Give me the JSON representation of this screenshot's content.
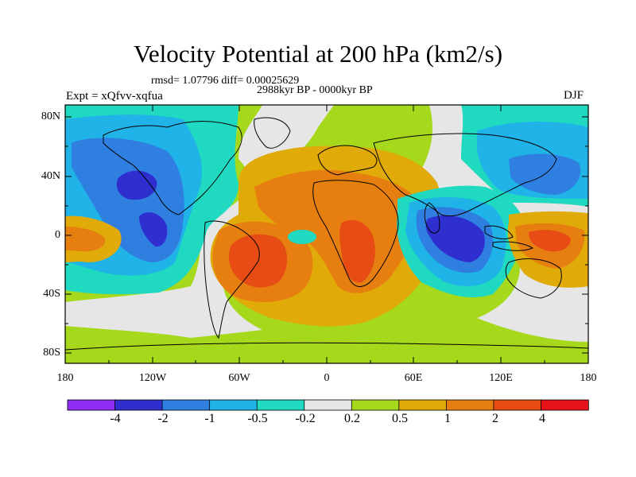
{
  "title": "Velocity Potential at 200 hPa (km2/s)",
  "subtitle_stats": "rmsd= 1.07796 diff= 0.00025629",
  "subtitle_period": "2988kyr BP - 0000kyr BP",
  "experiment": "Expt = xQfvv-xqfua",
  "season": "DJF",
  "lat_labels": [
    "80N",
    "40N",
    "0",
    "40S",
    "80S"
  ],
  "lon_labels": [
    "180",
    "120W",
    "60W",
    "0",
    "60E",
    "120E",
    "180"
  ],
  "colorbar": {
    "labels": [
      "-4",
      "-2",
      "-1",
      "-0.5",
      "-0.2",
      "0.2",
      "0.5",
      "1",
      "2",
      "4"
    ],
    "colors": [
      "#8f2df2",
      "#2f2fd0",
      "#2f7fe0",
      "#1fb3e8",
      "#1fd9c0",
      "#e6e6e6",
      "#a6d81c",
      "#e0aa08",
      "#e67e10",
      "#e64c14",
      "#e6141a"
    ]
  },
  "colors": {
    "neg_strong": "#2f2fd0",
    "neg_mid": "#2f7fe0",
    "neg_light": "#1fb3e8",
    "neg_weak": "#1fd9c0",
    "neutral": "#e6e6e6",
    "pos_weak": "#a6d81c",
    "pos_light": "#e0aa08",
    "pos_mid": "#e67e10",
    "pos_strong": "#e64c14"
  }
}
